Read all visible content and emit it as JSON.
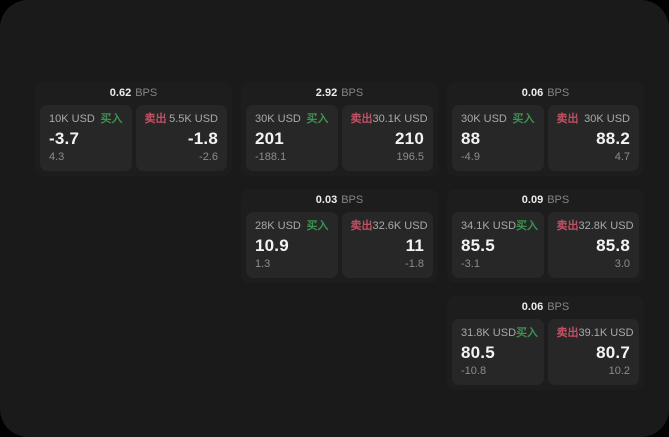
{
  "page": {
    "bps_suffix": "BPS",
    "buy_label": "买入",
    "sell_label": "卖出"
  },
  "colors": {
    "outer_bg": "#000000",
    "page_bg": "#1a1a1a",
    "card_bg": "#1d1d1d",
    "panel_bg": "#272727",
    "buy_green": "#3d9150",
    "sell_red": "#c05062"
  },
  "cards": [
    {
      "grid": {
        "row": 1,
        "col": 1
      },
      "bps": "0.62",
      "buy": {
        "amount": "10K USD",
        "main": "-3.7",
        "sub": "4.3"
      },
      "sell": {
        "amount": "5.5K USD",
        "main": "-1.8",
        "sub": "-2.6"
      }
    },
    {
      "grid": {
        "row": 1,
        "col": 2
      },
      "bps": "2.92",
      "buy": {
        "amount": "30K USD",
        "main": "201",
        "sub": "-188.1"
      },
      "sell": {
        "amount": "30.1K USD",
        "main": "210",
        "sub": "196.5"
      }
    },
    {
      "grid": {
        "row": 1,
        "col": 3
      },
      "bps": "0.06",
      "buy": {
        "amount": "30K USD",
        "main": "88",
        "sub": "-4.9"
      },
      "sell": {
        "amount": "30K USD",
        "main": "88.2",
        "sub": "4.7"
      }
    },
    {
      "grid": {
        "row": 2,
        "col": 2
      },
      "bps": "0.03",
      "buy": {
        "amount": "28K USD",
        "main": "10.9",
        "sub": "1.3"
      },
      "sell": {
        "amount": "32.6K USD",
        "main": "11",
        "sub": "-1.8"
      }
    },
    {
      "grid": {
        "row": 2,
        "col": 3
      },
      "bps": "0.09",
      "buy": {
        "amount": "34.1K USD",
        "main": "85.5",
        "sub": "-3.1"
      },
      "sell": {
        "amount": "32.8K USD",
        "main": "85.8",
        "sub": "3.0"
      }
    },
    {
      "grid": {
        "row": 3,
        "col": 3
      },
      "bps": "0.06",
      "buy": {
        "amount": "31.8K USD",
        "main": "80.5",
        "sub": "-10.8"
      },
      "sell": {
        "amount": "39.1K USD",
        "main": "80.7",
        "sub": "10.2"
      }
    }
  ]
}
